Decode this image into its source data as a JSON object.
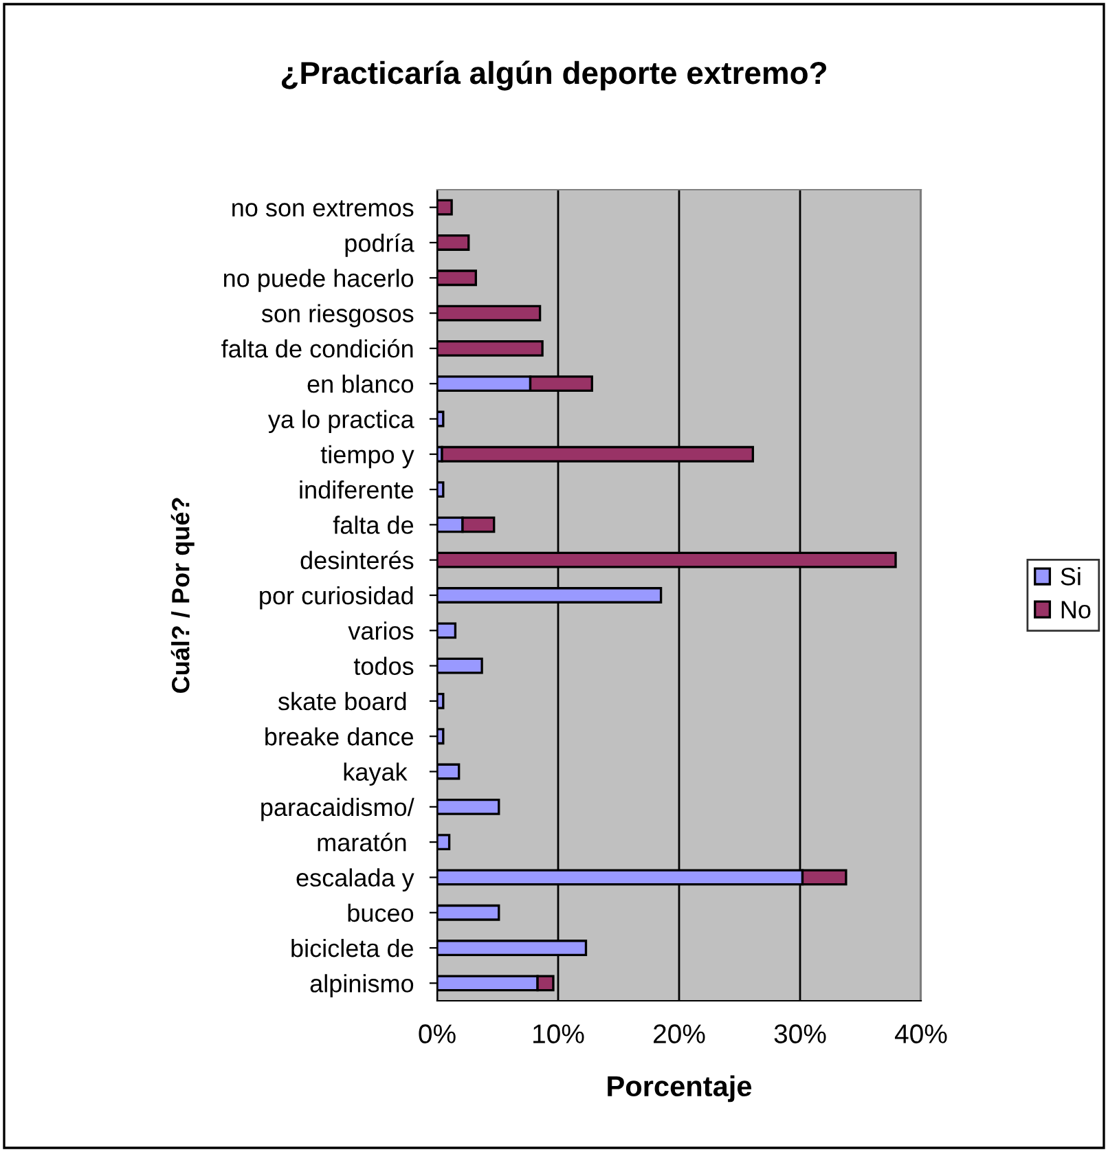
{
  "chart_data": {
    "type": "bar",
    "orientation": "horizontal",
    "stacked": true,
    "title": "¿Practicaría algún deporte extremo?",
    "xlabel": "Porcentaje",
    "ylabel": "Cuál? / Por qué?",
    "categories": [
      "no son extremos",
      "podría",
      "no puede hacerlo",
      "son riesgosos",
      "falta de condición",
      "en blanco",
      "ya lo practica",
      "tiempo y",
      "indiferente",
      "falta de",
      "desinterés",
      "por curiosidad",
      "varios",
      "todos",
      "skate board ",
      "breake dance",
      "kayak ",
      "paracaidismo/",
      "maratón ",
      "escalada y",
      "buceo",
      "bicicleta de",
      "alpinismo"
    ],
    "series": [
      {
        "name": "Si",
        "color": "#9999ff",
        "values": [
          null,
          null,
          null,
          null,
          null,
          7.7,
          0.5,
          0.4,
          0.5,
          2.1,
          null,
          18.5,
          1.5,
          3.7,
          0.5,
          0.5,
          1.8,
          5.1,
          1.0,
          30.2,
          5.1,
          12.3,
          8.3
        ]
      },
      {
        "name": "No",
        "color": "#993366",
        "values": [
          1.2,
          2.6,
          3.2,
          8.5,
          8.7,
          5.1,
          null,
          25.7,
          null,
          2.6,
          37.9,
          null,
          null,
          null,
          null,
          null,
          null,
          null,
          null,
          3.6,
          null,
          null,
          1.3
        ]
      }
    ],
    "xlim": [
      0,
      40
    ],
    "xticks": [
      {
        "value": 0,
        "label": "0%"
      },
      {
        "value": 10,
        "label": "10%"
      },
      {
        "value": 20,
        "label": "20%"
      },
      {
        "value": 30,
        "label": "30%"
      },
      {
        "value": 40,
        "label": "40%"
      }
    ],
    "grid": "x",
    "legend": "right"
  }
}
